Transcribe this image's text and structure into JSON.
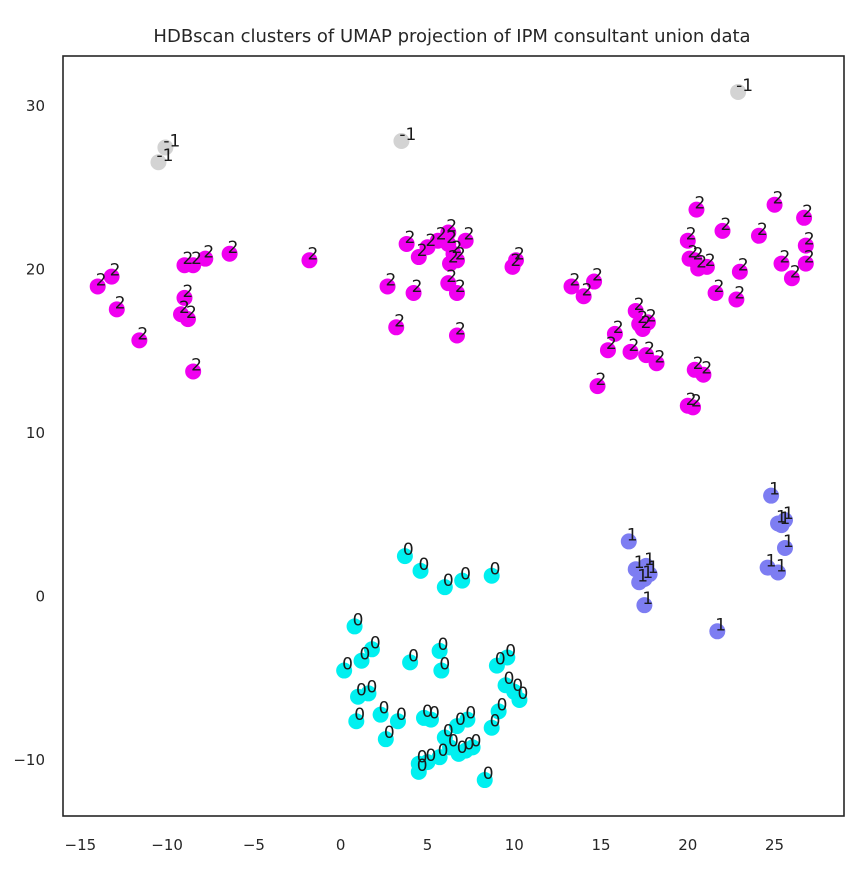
{
  "chart_data": {
    "type": "scatter",
    "title": "HDBscan clusters of UMAP projection of IPM consultant union data",
    "xlabel": "",
    "ylabel": "",
    "xlim": [
      -16,
      29
    ],
    "ylim": [
      -13.5,
      33
    ],
    "xticks": [
      -15,
      -10,
      -5,
      0,
      5,
      10,
      15,
      20,
      25
    ],
    "yticks": [
      -10,
      0,
      10,
      20,
      30
    ],
    "xtick_labels": [
      "−15",
      "−10",
      "−5",
      "0",
      "5",
      "10",
      "15",
      "20",
      "25"
    ],
    "ytick_labels": [
      "−10",
      "0",
      "10",
      "20",
      "30"
    ],
    "grid": false,
    "legend": false,
    "series": [
      {
        "label": "-1",
        "color": "#d3d3d3",
        "points": [
          [
            -10.5,
            26.5
          ],
          [
            -10.1,
            27.4
          ],
          [
            3.5,
            27.8
          ],
          [
            22.9,
            30.8
          ]
        ]
      },
      {
        "label": "0",
        "color": "#00f0f0",
        "points": [
          [
            3.7,
            2.4
          ],
          [
            4.6,
            1.5
          ],
          [
            6.0,
            0.5
          ],
          [
            7.0,
            0.9
          ],
          [
            8.7,
            1.2
          ],
          [
            0.8,
            -1.9
          ],
          [
            0.2,
            -4.6
          ],
          [
            1.2,
            -4.0
          ],
          [
            1.8,
            -3.3
          ],
          [
            4.0,
            -4.1
          ],
          [
            5.7,
            -3.4
          ],
          [
            5.8,
            -4.6
          ],
          [
            9.0,
            -4.3
          ],
          [
            9.6,
            -3.8
          ],
          [
            9.5,
            -5.5
          ],
          [
            10.0,
            -5.9
          ],
          [
            10.3,
            -6.4
          ],
          [
            1.0,
            -6.2
          ],
          [
            1.6,
            -6.0
          ],
          [
            2.3,
            -7.3
          ],
          [
            0.9,
            -7.7
          ],
          [
            3.3,
            -7.7
          ],
          [
            4.8,
            -7.5
          ],
          [
            5.2,
            -7.6
          ],
          [
            6.7,
            -8.0
          ],
          [
            7.3,
            -7.6
          ],
          [
            8.7,
            -8.1
          ],
          [
            9.1,
            -7.1
          ],
          [
            6.0,
            -8.7
          ],
          [
            2.6,
            -8.8
          ],
          [
            4.5,
            -10.3
          ],
          [
            4.5,
            -10.8
          ],
          [
            5.0,
            -10.2
          ],
          [
            5.7,
            -9.9
          ],
          [
            6.3,
            -9.3
          ],
          [
            6.8,
            -9.7
          ],
          [
            7.2,
            -9.5
          ],
          [
            7.6,
            -9.3
          ],
          [
            8.3,
            -11.3
          ]
        ]
      },
      {
        "label": "1",
        "color": "#7d7df2",
        "points": [
          [
            16.6,
            3.3
          ],
          [
            17.0,
            1.6
          ],
          [
            17.6,
            1.8
          ],
          [
            17.5,
            1.0
          ],
          [
            17.2,
            0.8
          ],
          [
            17.8,
            1.3
          ],
          [
            17.5,
            -0.6
          ],
          [
            21.7,
            -2.2
          ],
          [
            24.8,
            6.1
          ],
          [
            25.2,
            4.4
          ],
          [
            25.4,
            4.3
          ],
          [
            25.6,
            4.6
          ],
          [
            25.6,
            2.9
          ],
          [
            24.6,
            1.7
          ],
          [
            25.2,
            1.4
          ]
        ]
      },
      {
        "label": "2",
        "color": "#f000f0",
        "points": [
          [
            -14.0,
            18.9
          ],
          [
            -13.2,
            19.5
          ],
          [
            -12.9,
            17.5
          ],
          [
            -11.6,
            15.6
          ],
          [
            -9.0,
            20.2
          ],
          [
            -8.5,
            20.2
          ],
          [
            -7.8,
            20.6
          ],
          [
            -6.4,
            20.9
          ],
          [
            -9.0,
            18.2
          ],
          [
            -9.2,
            17.2
          ],
          [
            -8.8,
            16.9
          ],
          [
            -8.5,
            13.7
          ],
          [
            -1.8,
            20.5
          ],
          [
            2.7,
            18.9
          ],
          [
            3.2,
            16.4
          ],
          [
            3.8,
            21.5
          ],
          [
            4.2,
            18.5
          ],
          [
            4.5,
            20.7
          ],
          [
            5.0,
            21.3
          ],
          [
            5.6,
            21.7
          ],
          [
            6.2,
            22.2
          ],
          [
            6.2,
            21.5
          ],
          [
            6.5,
            20.9
          ],
          [
            6.3,
            20.3
          ],
          [
            6.7,
            20.5
          ],
          [
            7.2,
            21.7
          ],
          [
            6.2,
            19.1
          ],
          [
            6.7,
            18.5
          ],
          [
            6.7,
            15.9
          ],
          [
            9.9,
            20.1
          ],
          [
            10.1,
            20.5
          ],
          [
            13.3,
            18.9
          ],
          [
            14.0,
            18.3
          ],
          [
            14.6,
            19.2
          ],
          [
            14.8,
            12.8
          ],
          [
            15.4,
            15.0
          ],
          [
            15.8,
            16.0
          ],
          [
            16.7,
            14.9
          ],
          [
            17.0,
            17.4
          ],
          [
            17.2,
            16.6
          ],
          [
            17.4,
            16.3
          ],
          [
            17.7,
            16.7
          ],
          [
            17.6,
            14.7
          ],
          [
            18.2,
            14.2
          ],
          [
            20.0,
            11.6
          ],
          [
            20.3,
            11.5
          ],
          [
            20.4,
            13.8
          ],
          [
            20.9,
            13.5
          ],
          [
            20.0,
            21.7
          ],
          [
            20.5,
            23.6
          ],
          [
            20.1,
            20.6
          ],
          [
            20.4,
            20.5
          ],
          [
            20.6,
            20.0
          ],
          [
            21.1,
            20.1
          ],
          [
            21.6,
            18.5
          ],
          [
            22.0,
            22.3
          ],
          [
            22.8,
            18.1
          ],
          [
            23.0,
            19.8
          ],
          [
            24.1,
            22.0
          ],
          [
            25.0,
            23.9
          ],
          [
            25.4,
            20.3
          ],
          [
            26.0,
            19.4
          ],
          [
            26.7,
            23.1
          ],
          [
            26.8,
            21.4
          ],
          [
            26.8,
            20.3
          ]
        ]
      }
    ]
  }
}
